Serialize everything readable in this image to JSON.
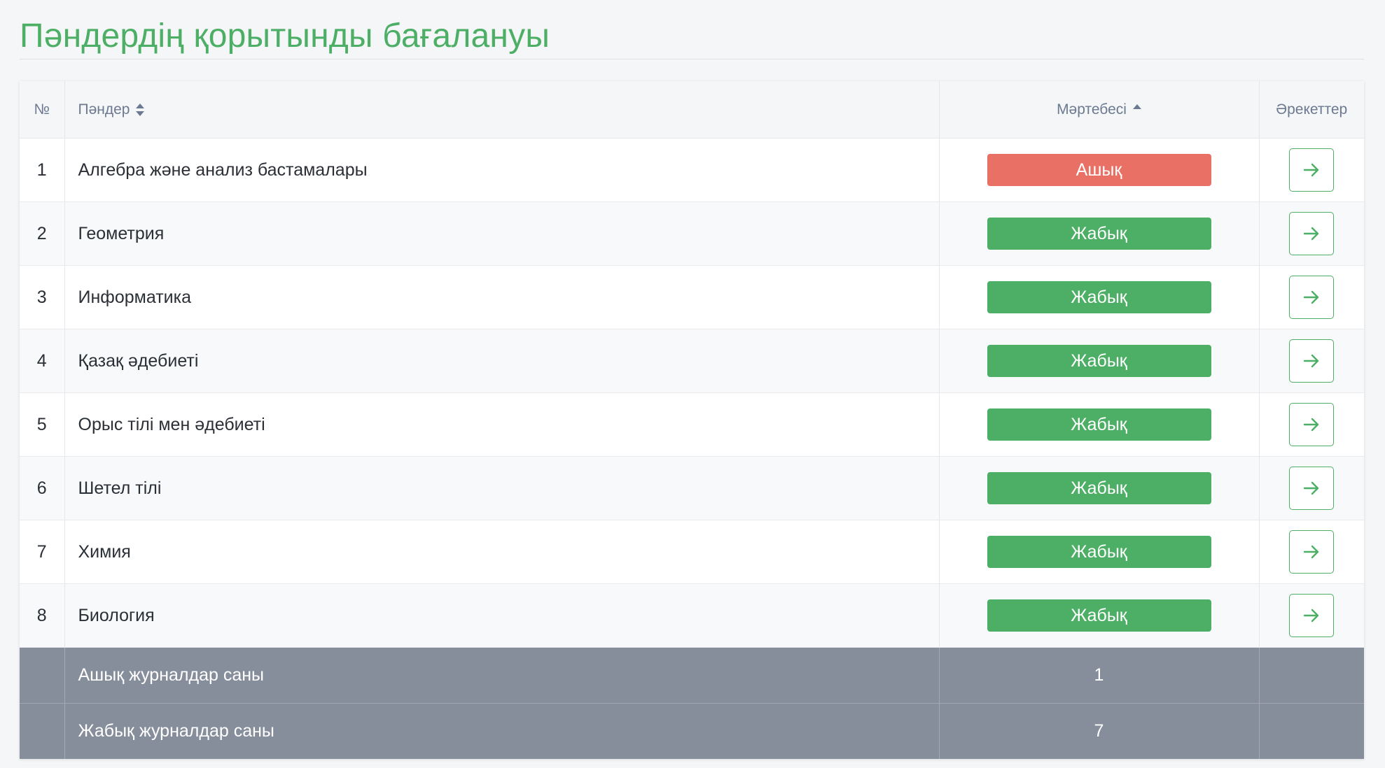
{
  "page": {
    "title": "Пәндердің қорытынды бағалануы"
  },
  "colors": {
    "accent": "#4caf65",
    "open": "#e87065",
    "closed": "#4caf65",
    "summary_bg": "#868d9b"
  },
  "table": {
    "headers": {
      "number": "№",
      "subjects": "Пәндер",
      "status": "Мәртебесі",
      "actions": "Әрекеттер"
    },
    "rows": [
      {
        "num": "1",
        "subject": "Алгебра және анализ бастамалары",
        "status": "Ашық",
        "status_type": "open",
        "action_icon": "arrow-right-icon"
      },
      {
        "num": "2",
        "subject": "Геометрия",
        "status": "Жабық",
        "status_type": "closed",
        "action_icon": "arrow-right-icon"
      },
      {
        "num": "3",
        "subject": "Информатика",
        "status": "Жабық",
        "status_type": "closed",
        "action_icon": "arrow-right-icon"
      },
      {
        "num": "4",
        "subject": "Қазақ әдебиеті",
        "status": "Жабық",
        "status_type": "closed",
        "action_icon": "arrow-right-icon"
      },
      {
        "num": "5",
        "subject": "Орыс тілі мен әдебиеті",
        "status": "Жабық",
        "status_type": "closed",
        "action_icon": "arrow-right-icon"
      },
      {
        "num": "6",
        "subject": "Шетел тілі",
        "status": "Жабық",
        "status_type": "closed",
        "action_icon": "arrow-right-icon"
      },
      {
        "num": "7",
        "subject": "Химия",
        "status": "Жабық",
        "status_type": "closed",
        "action_icon": "arrow-right-icon"
      },
      {
        "num": "8",
        "subject": "Биология",
        "status": "Жабық",
        "status_type": "closed",
        "action_icon": "arrow-right-icon"
      }
    ],
    "summary": [
      {
        "label": "Ашық журналдар саны",
        "value": "1"
      },
      {
        "label": "Жабық журналдар саны",
        "value": "7"
      }
    ]
  }
}
